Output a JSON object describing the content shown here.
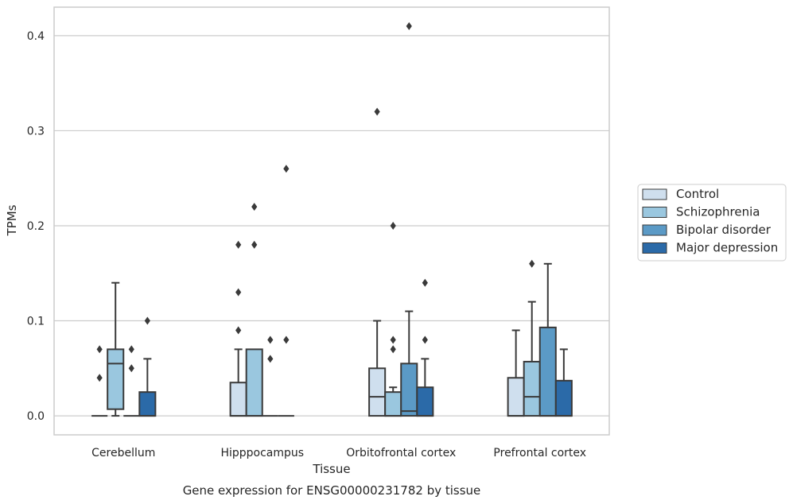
{
  "chart_data": {
    "type": "box",
    "title": "",
    "caption": "Gene expression for ENSG00000231782 by tissue",
    "xlabel": "Tissue",
    "ylabel": "TPMs",
    "ylim": [
      -0.02,
      0.43
    ],
    "yticks": [
      "0.0",
      "0.1",
      "0.2",
      "0.3",
      "0.4"
    ],
    "ytick_values": [
      0.0,
      0.1,
      0.2,
      0.3,
      0.4
    ],
    "grid": "horizontal",
    "legend_position": "right",
    "categories": [
      "Cerebellum",
      "Hipppocampus",
      "Orbitofrontal cortex",
      "Prefrontal cortex"
    ],
    "series": [
      {
        "name": "Control",
        "color": "#cfdfee",
        "boxes": [
          {
            "q1": 0.0,
            "median": 0.0,
            "q3": 0.0,
            "whislo": 0.0,
            "whishi": 0.0,
            "fliers": [
              0.04,
              0.07
            ]
          },
          {
            "q1": 0.0,
            "median": 0.0,
            "q3": 0.035,
            "whislo": 0.0,
            "whishi": 0.07,
            "fliers": [
              0.09,
              0.13,
              0.18
            ]
          },
          {
            "q1": 0.0,
            "median": 0.02,
            "q3": 0.05,
            "whislo": 0.0,
            "whishi": 0.1,
            "fliers": [
              0.32
            ]
          },
          {
            "q1": 0.0,
            "median": 0.0,
            "q3": 0.04,
            "whislo": 0.0,
            "whishi": 0.09,
            "fliers": []
          }
        ]
      },
      {
        "name": "Schizophrenia",
        "color": "#9ac7df",
        "boxes": [
          {
            "q1": 0.007,
            "median": 0.055,
            "q3": 0.07,
            "whislo": 0.0,
            "whishi": 0.14,
            "fliers": []
          },
          {
            "q1": 0.0,
            "median": 0.0,
            "q3": 0.07,
            "whislo": 0.0,
            "whishi": 0.07,
            "fliers": [
              0.18,
              0.22
            ]
          },
          {
            "q1": 0.0,
            "median": 0.0,
            "q3": 0.025,
            "whislo": 0.0,
            "whishi": 0.03,
            "fliers": [
              0.07,
              0.08,
              0.2
            ]
          },
          {
            "q1": 0.0,
            "median": 0.02,
            "q3": 0.057,
            "whislo": 0.0,
            "whishi": 0.12,
            "fliers": [
              0.16
            ]
          }
        ]
      },
      {
        "name": "Bipolar disorder",
        "color": "#5b9ac6",
        "boxes": [
          {
            "q1": 0.0,
            "median": 0.0,
            "q3": 0.0,
            "whislo": 0.0,
            "whishi": 0.0,
            "fliers": [
              0.05,
              0.07
            ]
          },
          {
            "q1": 0.0,
            "median": 0.0,
            "q3": 0.0,
            "whislo": 0.0,
            "whishi": 0.0,
            "fliers": [
              0.06,
              0.08
            ]
          },
          {
            "q1": 0.0,
            "median": 0.005,
            "q3": 0.055,
            "whislo": 0.0,
            "whishi": 0.11,
            "fliers": [
              0.41
            ]
          },
          {
            "q1": 0.0,
            "median": 0.0,
            "q3": 0.093,
            "whislo": 0.0,
            "whishi": 0.16,
            "fliers": []
          }
        ]
      },
      {
        "name": "Major depression",
        "color": "#2b6aa8",
        "boxes": [
          {
            "q1": 0.0,
            "median": 0.0,
            "q3": 0.025,
            "whislo": 0.0,
            "whishi": 0.06,
            "fliers": [
              0.1
            ]
          },
          {
            "q1": 0.0,
            "median": 0.0,
            "q3": 0.0,
            "whislo": 0.0,
            "whishi": 0.0,
            "fliers": [
              0.08,
              0.26
            ]
          },
          {
            "q1": 0.0,
            "median": 0.0,
            "q3": 0.03,
            "whislo": 0.0,
            "whishi": 0.06,
            "fliers": [
              0.08,
              0.14
            ]
          },
          {
            "q1": 0.0,
            "median": 0.0,
            "q3": 0.037,
            "whislo": 0.0,
            "whishi": 0.07,
            "fliers": []
          }
        ]
      }
    ],
    "style": {
      "edge_color": "#3a3a3a",
      "grid_color": "#cccccc",
      "axes_edge_color": "#cccccc"
    }
  }
}
